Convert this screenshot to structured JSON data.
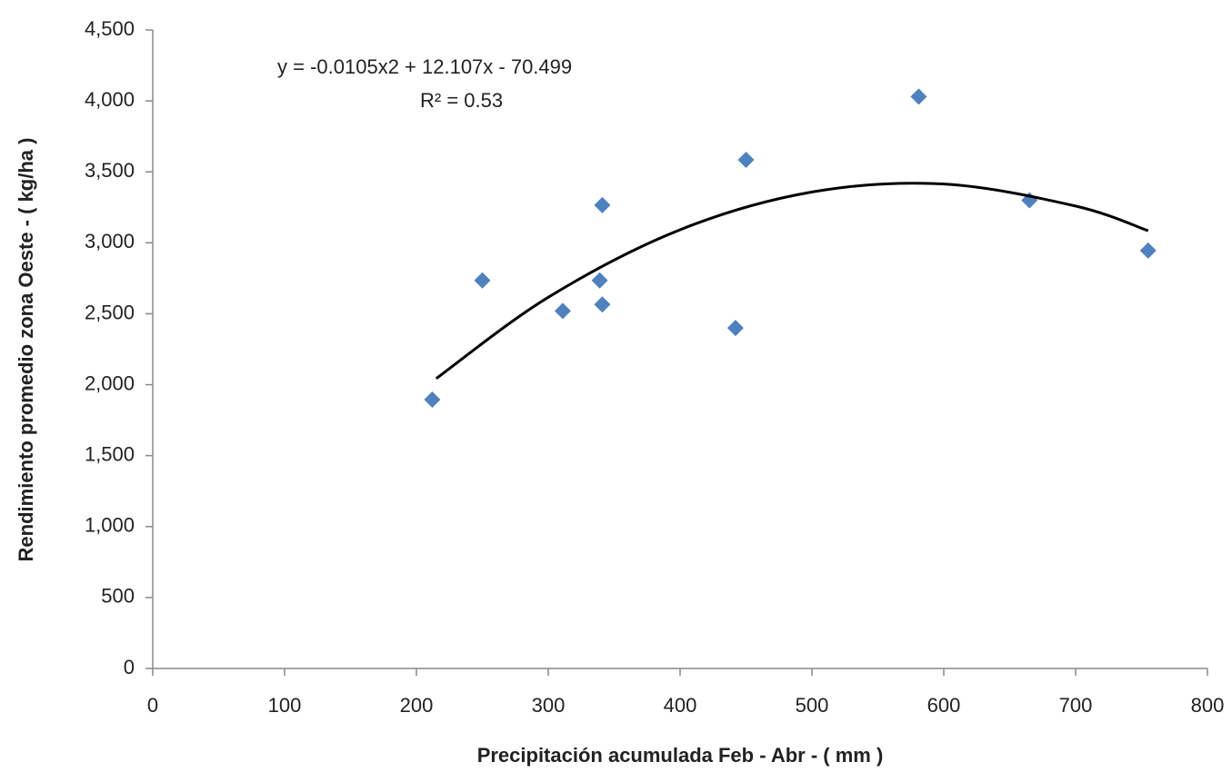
{
  "chart_data": {
    "type": "scatter",
    "x_label": "Precipitación acumulada Feb - Abr - ( mm )",
    "y_label": "Rendimiento promedio zona Oeste - ( kg/ha )",
    "x": [
      212,
      250,
      311,
      339,
      341,
      341,
      442,
      450,
      581,
      665,
      755
    ],
    "values": [
      1895,
      2735,
      2520,
      2735,
      2565,
      3265,
      2400,
      3585,
      4030,
      3300,
      2945
    ],
    "color": "#4f81bd",
    "xlim": [
      0,
      800
    ],
    "xticks": [
      0,
      100,
      200,
      300,
      400,
      500,
      600,
      700,
      800
    ],
    "ylim": [
      0,
      4500
    ],
    "yticks": [
      0,
      500,
      {
        "value": 1000,
        "label": "1,000"
      },
      {
        "value": 1500,
        "label": "1,500"
      },
      {
        "value": 2000,
        "label": "2,000"
      },
      {
        "value": 2500,
        "label": "2,500"
      },
      {
        "value": 3000,
        "label": "3,000"
      },
      {
        "value": 3500,
        "label": "3,500"
      },
      {
        "value": 4000,
        "label": "4,000"
      },
      {
        "value": 4500,
        "label": "4,500"
      }
    ],
    "grid": false,
    "trendline": {
      "equation": "y = -0.0105x2 + 12.107x - 70.499",
      "r_squared": "R² = 0.53",
      "color": "#000000",
      "x": [
        215,
        300,
        400,
        500,
        600,
        700,
        755
      ],
      "values": [
        2043,
        2616,
        3092,
        3358,
        3414,
        3259,
        3085
      ]
    }
  }
}
